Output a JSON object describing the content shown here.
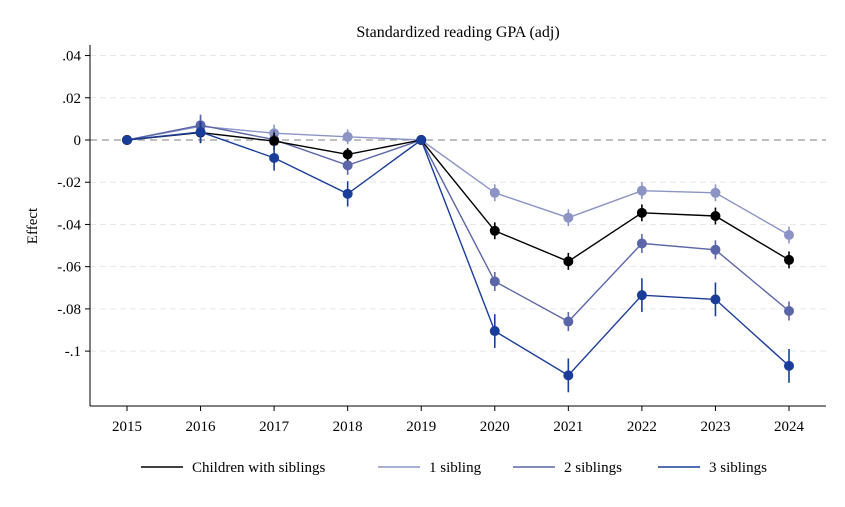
{
  "chart_data": {
    "type": "line",
    "title": "Standardized reading GPA (adj)",
    "xlabel": "",
    "ylabel": "Effect",
    "x": [
      2015,
      2016,
      2017,
      2018,
      2019,
      2020,
      2021,
      2022,
      2023,
      2024
    ],
    "x_tick_labels": [
      "2015",
      "2016",
      "2017",
      "2018",
      "2019",
      "2020",
      "2021",
      "2022",
      "2023",
      "2024"
    ],
    "y_ticks": [
      0.04,
      0.02,
      0,
      -0.02,
      -0.04,
      -0.06,
      -0.08,
      -0.1
    ],
    "y_tick_labels": [
      ".04",
      ".02",
      "0",
      "-.02",
      "-.04",
      "-.06",
      "-.08",
      "-.1"
    ],
    "ylim": [
      -0.126,
      0.045
    ],
    "reference_line": 0,
    "grid": true,
    "legend_position": "bottom",
    "series": [
      {
        "name": "Children with siblings",
        "color": "#000000",
        "values": [
          0,
          0.0035,
          -0.0005,
          -0.0068,
          0,
          -0.043,
          -0.0575,
          -0.0345,
          -0.036,
          -0.0568
        ],
        "ci_low": [
          0,
          -0.0015,
          -0.0045,
          -0.0098,
          0,
          -0.047,
          -0.0615,
          -0.0385,
          -0.04,
          -0.0608
        ],
        "ci_high": [
          0,
          0.0085,
          0.0035,
          -0.0038,
          0,
          -0.039,
          -0.0535,
          -0.0305,
          -0.032,
          -0.0528
        ]
      },
      {
        "name": "1 sibling",
        "color": "#8c94c6",
        "values": [
          0,
          0.0065,
          0.0032,
          0.0015,
          0,
          -0.025,
          -0.0368,
          -0.024,
          -0.025,
          -0.045
        ],
        "ci_low": [
          0,
          0.0015,
          -0.0008,
          -0.002,
          0,
          -0.029,
          -0.0408,
          -0.028,
          -0.029,
          -0.049
        ],
        "ci_high": [
          0,
          0.0115,
          0.0072,
          0.005,
          0,
          -0.021,
          -0.0328,
          -0.02,
          -0.021,
          -0.041
        ]
      },
      {
        "name": "2 siblings",
        "color": "#5b66a8",
        "values": [
          0,
          0.007,
          0.0002,
          -0.012,
          0,
          -0.067,
          -0.086,
          -0.049,
          -0.052,
          -0.081
        ],
        "ci_low": [
          0,
          0.002,
          -0.0043,
          -0.0165,
          0,
          -0.0715,
          -0.0905,
          -0.0535,
          -0.0565,
          -0.0855
        ],
        "ci_high": [
          0,
          0.012,
          0.0047,
          -0.0075,
          0,
          -0.0625,
          -0.0815,
          -0.0445,
          -0.0475,
          -0.0765
        ]
      },
      {
        "name": "3 siblings",
        "color": "#1b3d9a",
        "values": [
          0,
          0.0038,
          -0.0085,
          -0.0255,
          0,
          -0.0905,
          -0.1115,
          -0.0735,
          -0.0755,
          -0.107
        ],
        "ci_low": [
          0,
          -0.0012,
          -0.0145,
          -0.0315,
          0,
          -0.0985,
          -0.1195,
          -0.0815,
          -0.0835,
          -0.115
        ],
        "ci_high": [
          0,
          0.0088,
          -0.0025,
          -0.0195,
          0,
          -0.0825,
          -0.1035,
          -0.0655,
          -0.0675,
          -0.099
        ]
      }
    ]
  }
}
